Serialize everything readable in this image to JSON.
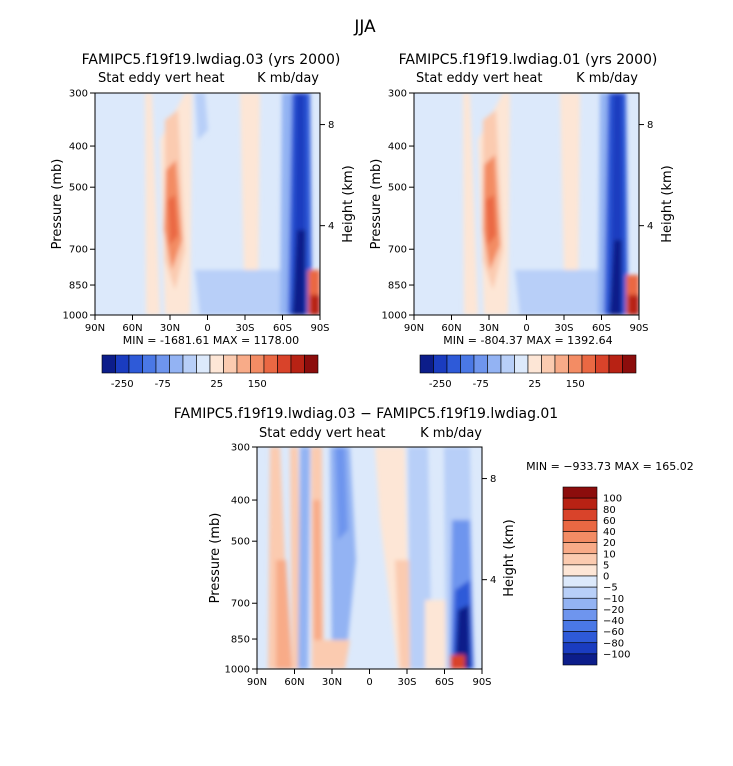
{
  "season": "JJA",
  "chart_data": [
    {
      "type": "heatmap",
      "id": "p1",
      "title": "FAMIPC5.f19f19.lwdiag.03 (yrs 2000)",
      "subtitle_left": "Stat eddy vert heat",
      "subtitle_right": "K mb/day",
      "xlabel": "",
      "ylabel": "Pressure (mb)",
      "y2label": "Height (km)",
      "x_ticks": [
        "90N",
        "60N",
        "30N",
        "0",
        "30S",
        "60S",
        "90S"
      ],
      "y_ticks": [
        "300",
        "400",
        "500",
        "700",
        "850",
        "1000"
      ],
      "y2_ticks": [
        "8",
        "4"
      ],
      "ylim": [
        1000,
        300
      ],
      "stats": "MIN = -1681.61   MAX = 1178.00",
      "colorbar_labels": [
        "-250",
        "-75",
        "25",
        "150"
      ],
      "colors": [
        "#0c1d8a",
        "#1a3cc0",
        "#2e5ad8",
        "#4a78e6",
        "#6e95ee",
        "#93b3f3",
        "#b8cff8",
        "#dce9fb",
        "#fde6d6",
        "#fbcbb0",
        "#f8ab88",
        "#f38c64",
        "#ea6843",
        "#d9432a",
        "#b82214",
        "#8c0d0c"
      ]
    },
    {
      "type": "heatmap",
      "id": "p2",
      "title": "FAMIPC5.f19f19.lwdiag.01 (yrs 2000)",
      "subtitle_left": "Stat eddy vert heat",
      "subtitle_right": "K mb/day",
      "xlabel": "",
      "ylabel": "Pressure (mb)",
      "y2label": "Height (km)",
      "x_ticks": [
        "90N",
        "60N",
        "30N",
        "0",
        "30S",
        "60S",
        "90S"
      ],
      "y_ticks": [
        "300",
        "400",
        "500",
        "700",
        "850",
        "1000"
      ],
      "y2_ticks": [
        "8",
        "4"
      ],
      "ylim": [
        1000,
        300
      ],
      "stats": "MIN = -804.37   MAX = 1392.64",
      "colorbar_labels": [
        "-250",
        "-75",
        "25",
        "150"
      ],
      "colors": [
        "#0c1d8a",
        "#1a3cc0",
        "#2e5ad8",
        "#4a78e6",
        "#6e95ee",
        "#93b3f3",
        "#b8cff8",
        "#dce9fb",
        "#fde6d6",
        "#fbcbb0",
        "#f8ab88",
        "#f38c64",
        "#ea6843",
        "#d9432a",
        "#b82214",
        "#8c0d0c"
      ]
    },
    {
      "type": "heatmap",
      "id": "p3",
      "title": "FAMIPC5.f19f19.lwdiag.03 − FAMIPC5.f19f19.lwdiag.01",
      "subtitle_left": "Stat eddy vert heat",
      "subtitle_right": "K mb/day",
      "xlabel": "",
      "ylabel": "Pressure (mb)",
      "y2label": "Height (km)",
      "x_ticks": [
        "90N",
        "60N",
        "30N",
        "0",
        "30S",
        "60S",
        "90S"
      ],
      "y_ticks": [
        "300",
        "400",
        "500",
        "700",
        "850",
        "1000"
      ],
      "y2_ticks": [
        "8",
        "4"
      ],
      "ylim": [
        1000,
        300
      ],
      "stats": "MIN = −933.73   MAX = 165.02",
      "colorbar_labels": [
        "100",
        "80",
        "60",
        "40",
        "20",
        "10",
        "5",
        "0",
        "−5",
        "−10",
        "−20",
        "−40",
        "−60",
        "−80",
        "−100"
      ],
      "colors": [
        "#8c0d0c",
        "#b82214",
        "#d9432a",
        "#ea6843",
        "#f38c64",
        "#f8ab88",
        "#fbcbb0",
        "#fde6d6",
        "#dce9fb",
        "#b8cff8",
        "#93b3f3",
        "#6e95ee",
        "#4a78e6",
        "#2e5ad8",
        "#1a3cc0",
        "#0c1d8a"
      ]
    }
  ]
}
